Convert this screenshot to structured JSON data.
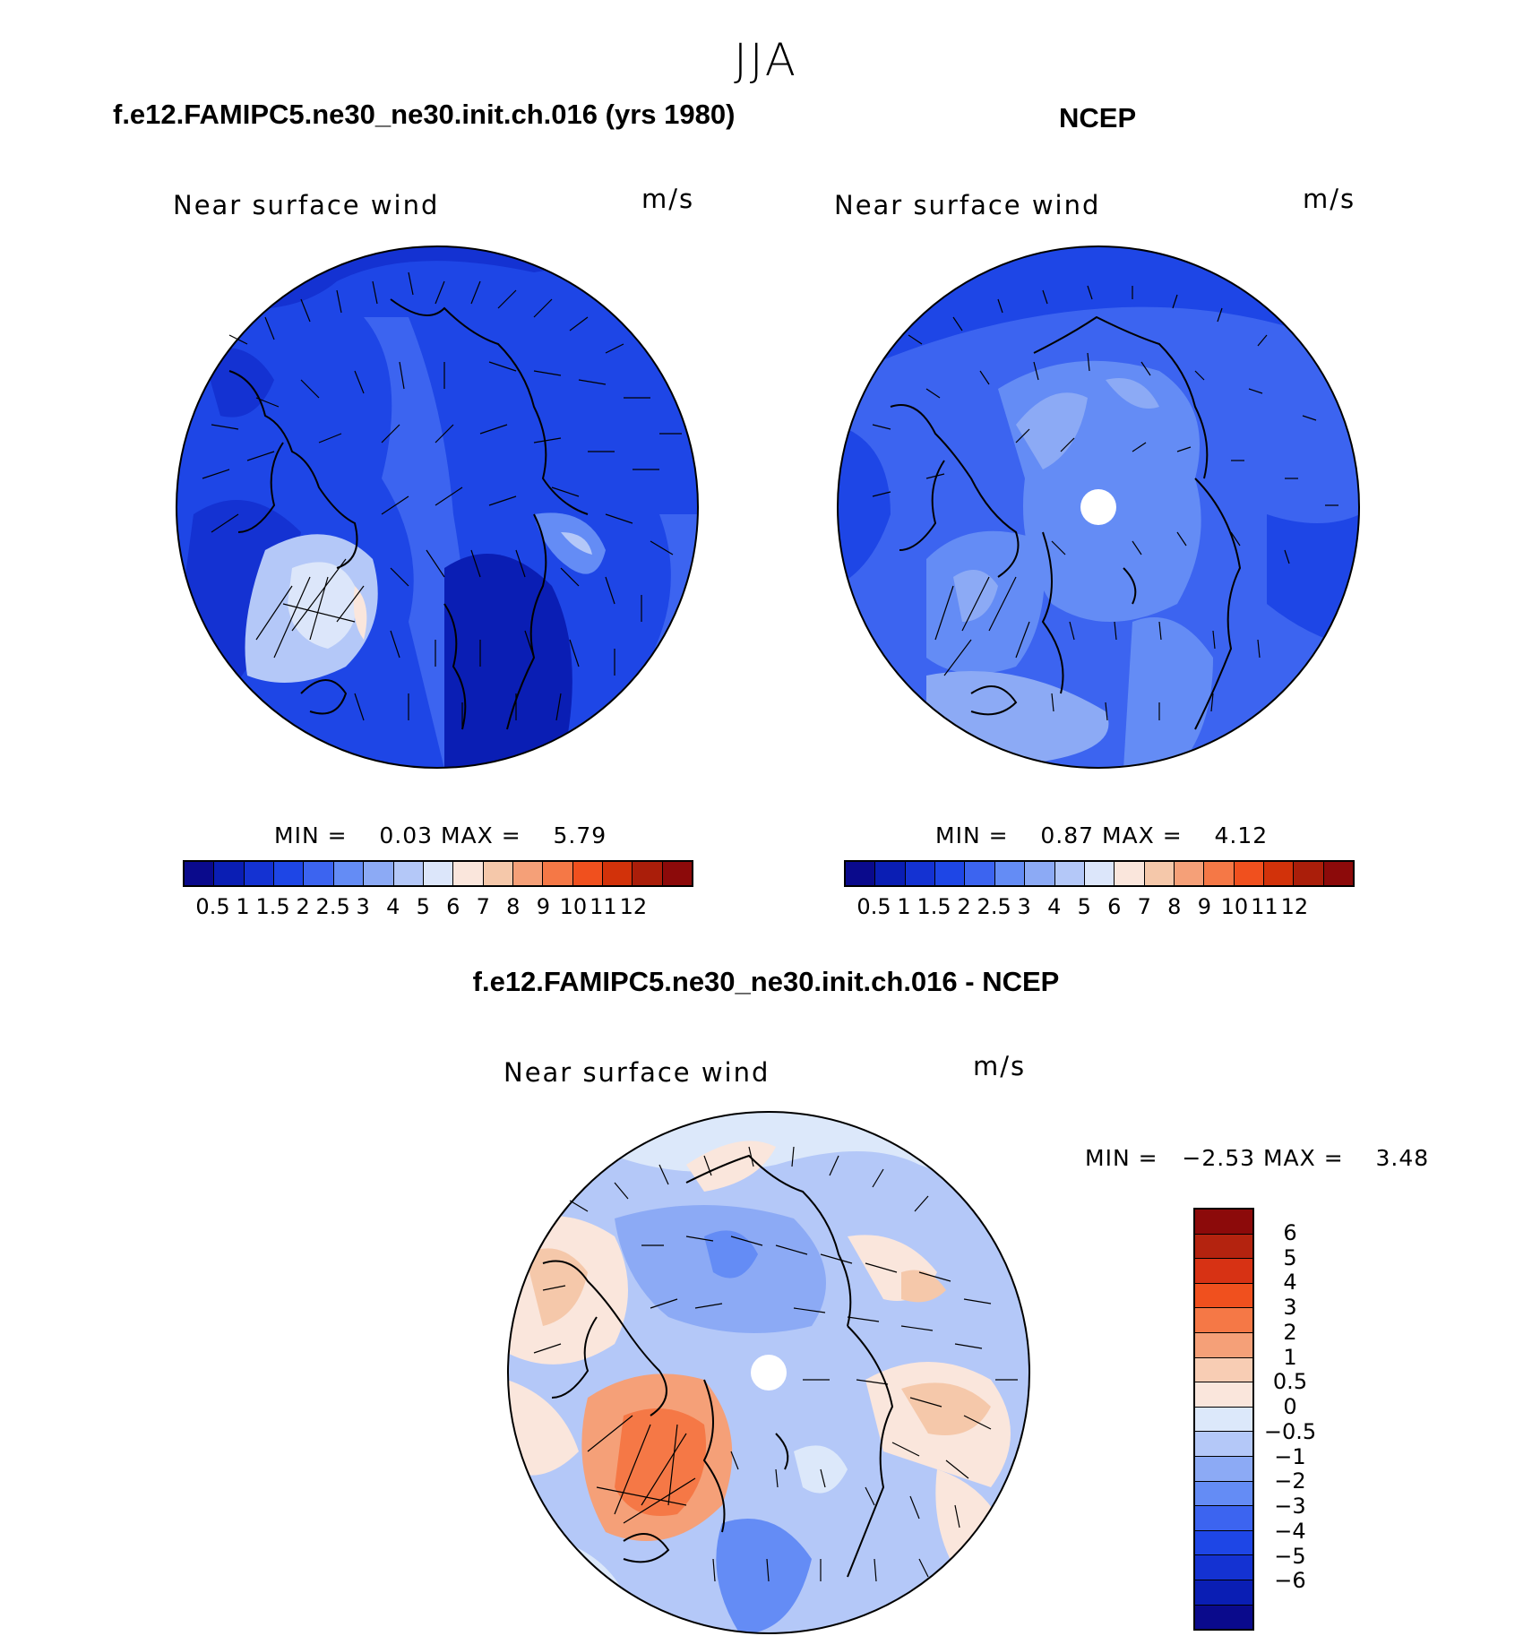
{
  "figure": {
    "title": "JJA",
    "panel_left_title": "f.e12.FAMIPC5.ne30_ne30.init.ch.016 (yrs 1980)",
    "panel_right_title": "NCEP",
    "panel_diff_title": "f.e12.FAMIPC5.ne30_ne30.init.ch.016 - NCEP"
  },
  "panels": {
    "left": {
      "variable": "Near surface wind",
      "units": "m/s",
      "min_label": "MIN =",
      "min_value": "0.03",
      "max_label": "MAX =",
      "max_value": "5.79"
    },
    "right": {
      "variable": "Near surface wind",
      "units": "m/s",
      "min_label": "MIN =",
      "min_value": "0.87",
      "max_label": "MAX =",
      "max_value": "4.12"
    },
    "diff": {
      "variable": "Near surface wind",
      "units": "m/s",
      "min_label": "MIN =",
      "min_value": "−2.53",
      "max_label": "MAX =",
      "max_value": "3.48"
    }
  },
  "colorbars": {
    "abs_colors": [
      "#0a0a8c",
      "#0a1eb4",
      "#1432d2",
      "#1e46e6",
      "#3c64f0",
      "#648cf5",
      "#8caaf5",
      "#b4c8f8",
      "#dce6fa",
      "#fae6dc",
      "#f5c8aa",
      "#f5a078",
      "#f57846",
      "#f0501e",
      "#d2320a",
      "#aa1e0a",
      "#8c0a0a"
    ],
    "abs_labels": [
      "0.5",
      "1",
      "1.5",
      "2",
      "2.5",
      "3",
      "4",
      "5",
      "6",
      "7",
      "8",
      "9",
      "10",
      "11",
      "12"
    ],
    "diff_colors": [
      "#8c0a0a",
      "#b4230f",
      "#d73214",
      "#f0501e",
      "#f57846",
      "#f5a078",
      "#f8cdb4",
      "#fae6dc",
      "#dce8fa",
      "#b4c8f8",
      "#8caaf5",
      "#648cf5",
      "#3c64f0",
      "#1e46e6",
      "#1432d2",
      "#0a1eb4",
      "#0a0a8c"
    ],
    "diff_labels": [
      "6",
      "5",
      "4",
      "3",
      "2",
      "1",
      "0.5",
      "0",
      "−0.5",
      "−1",
      "−2",
      "−3",
      "−4",
      "−5",
      "−6"
    ]
  }
}
